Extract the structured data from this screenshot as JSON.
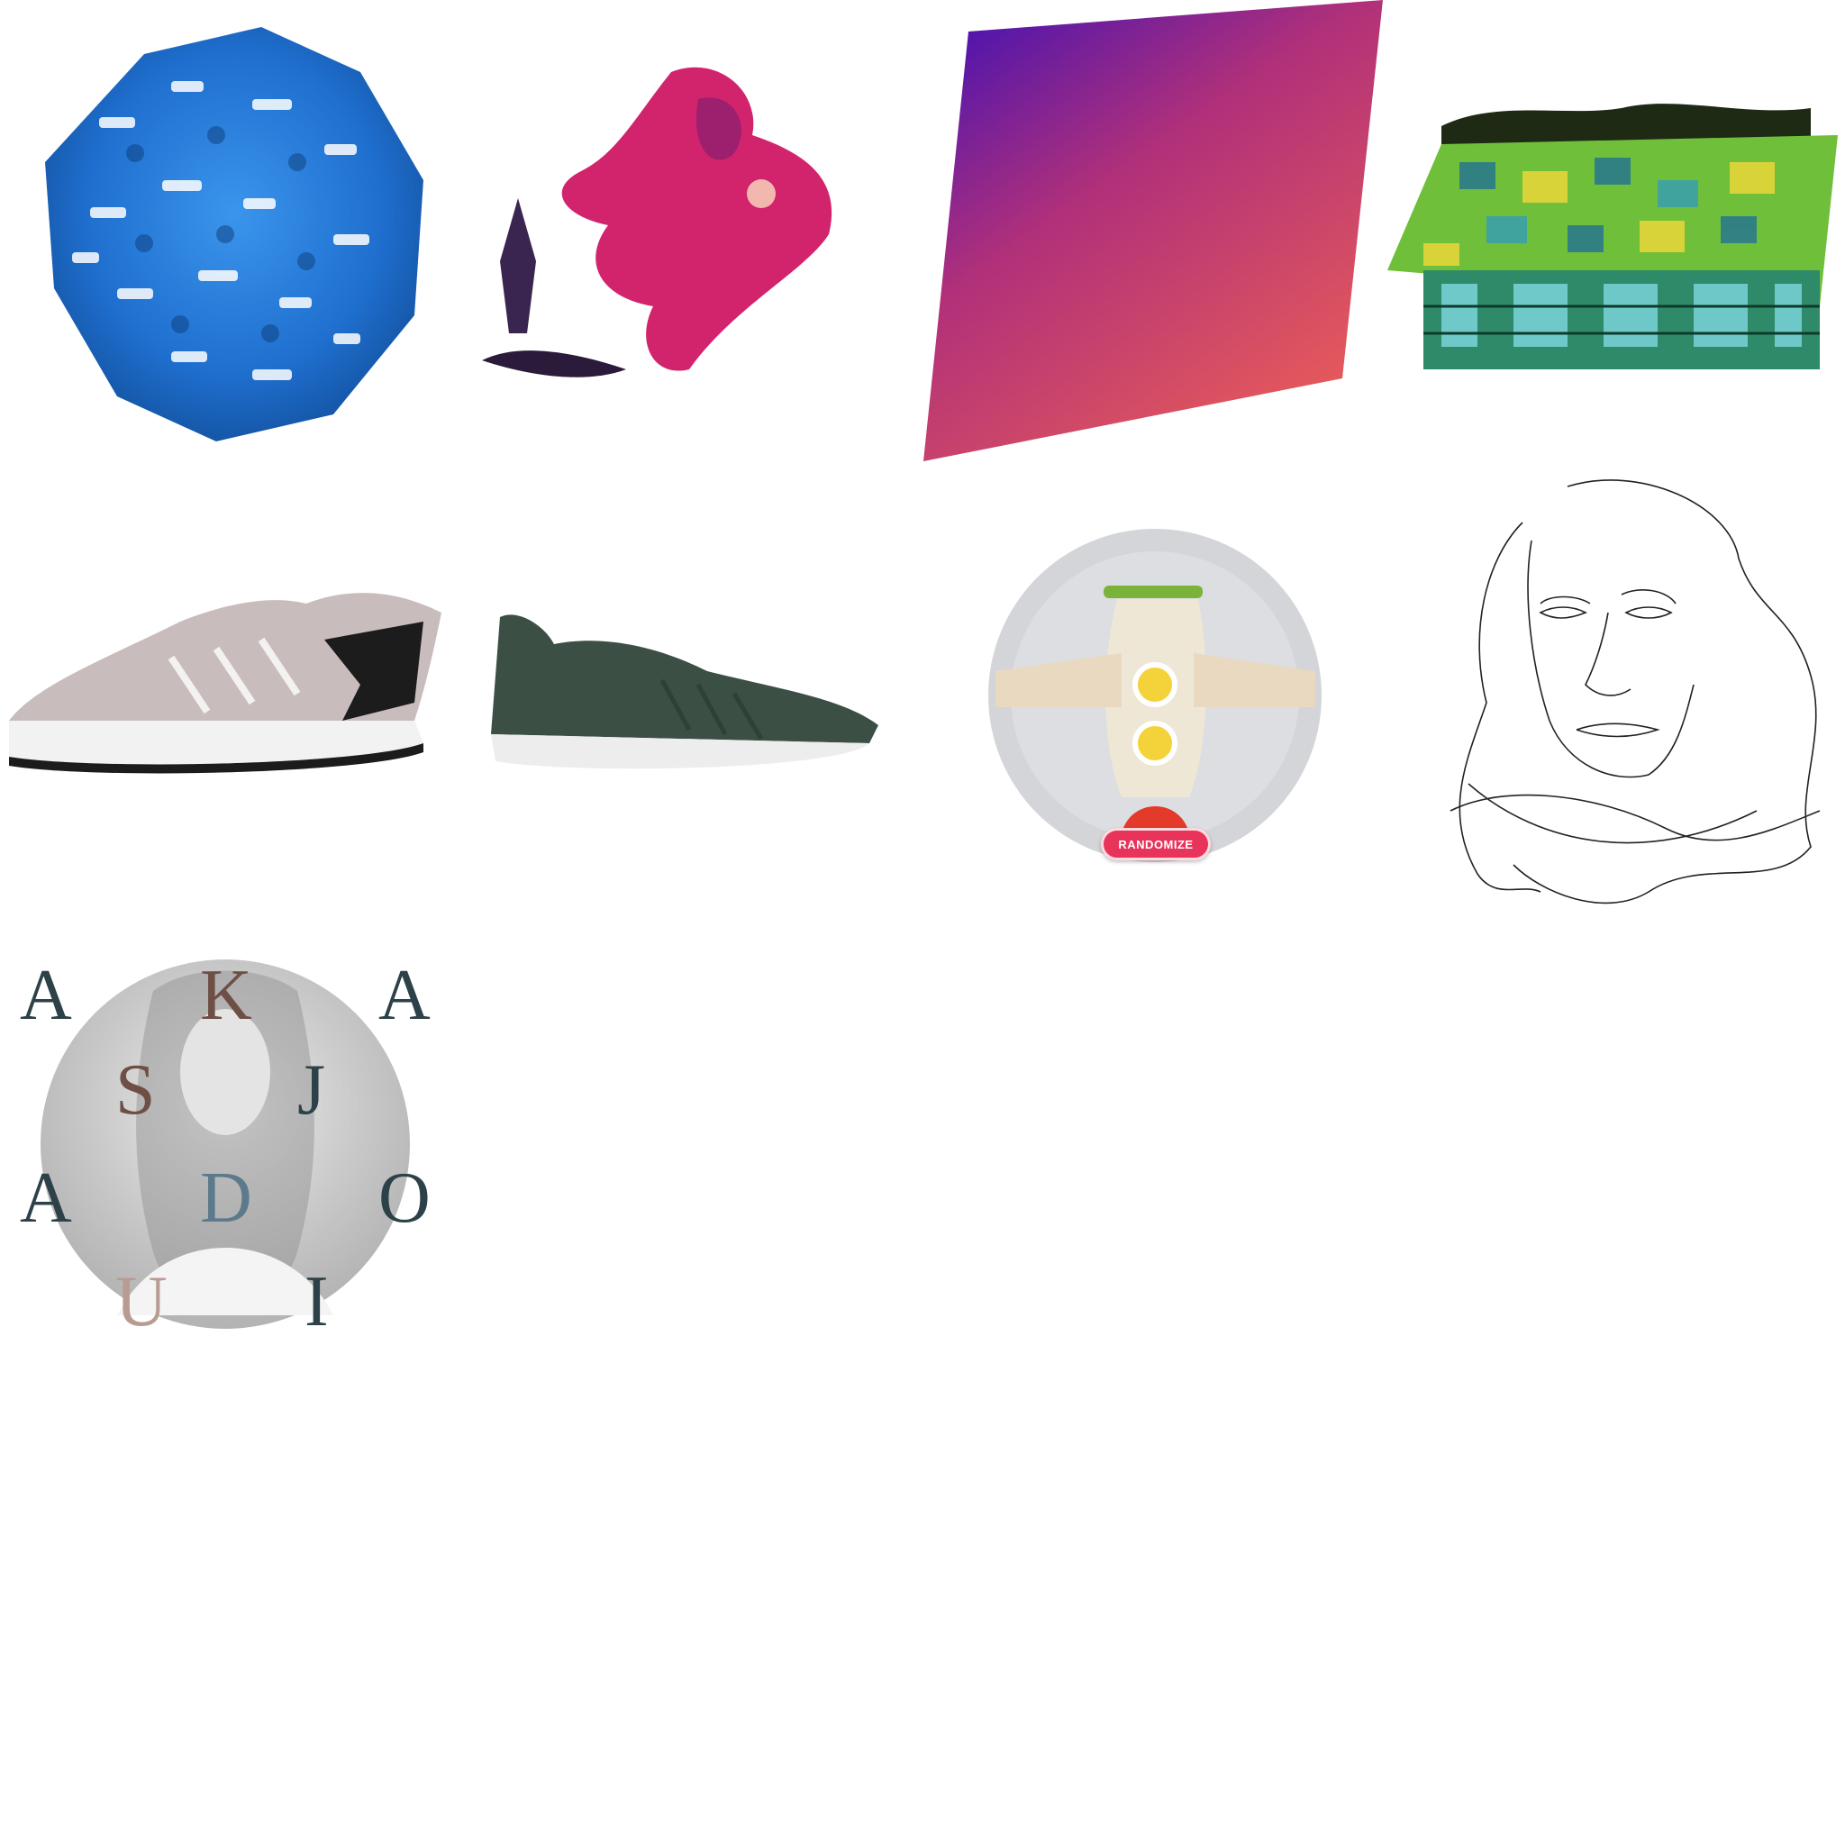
{
  "gallery": {
    "tiles": [
      {
        "icon": "blue-cans-cluster-icon"
      },
      {
        "icon": "ink-splash-figure-icon"
      },
      {
        "icon": "gradient-panel-icon"
      },
      {
        "icon": "pixel-house-icon"
      },
      {
        "icon": "running-shoe-grey-icon"
      },
      {
        "icon": "running-shoe-green-icon"
      },
      {
        "icon": "food-plate-rocket-icon"
      },
      {
        "icon": "line-portrait-icon"
      },
      {
        "icon": "typography-portrait-icon"
      }
    ],
    "plate": {
      "randomize_label": "RANDOMIZE"
    },
    "typography": {
      "letters": [
        "A",
        "K",
        "A",
        "S",
        "J",
        "A",
        "D",
        "O",
        "U",
        "I"
      ]
    }
  },
  "colors": {
    "cans_blue": "#1f77d0",
    "ink_magenta": "#d2236d",
    "gradient_top": "#3a0fb8",
    "gradient_bottom": "#e65a5a",
    "shoe_grey": "#c9bcbc",
    "shoe_green": "#3b4f45",
    "randomize_red": "#e8335a"
  }
}
